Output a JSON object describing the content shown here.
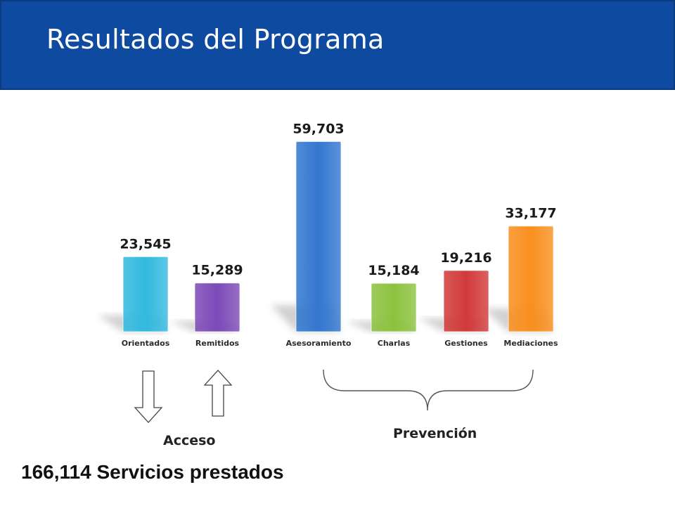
{
  "header": {
    "title": "Resultados del Programa",
    "background_color": "#0e4aa0"
  },
  "chart_data": {
    "type": "bar",
    "categories": [
      "Orientados",
      "Remitidos",
      "Asesoramiento",
      "Charlas",
      "Gestiones",
      "Mediaciones"
    ],
    "values": [
      23545,
      15289,
      59703,
      15184,
      19216,
      33177
    ],
    "value_labels": [
      "23,545",
      "15,289",
      "59,703",
      "15,184",
      "19,216",
      "33,177"
    ],
    "colors": [
      "#33b9df",
      "#7d4ab8",
      "#3377cf",
      "#8cc23f",
      "#d23a3a",
      "#f98f1e"
    ],
    "ylim": [
      0,
      60000
    ],
    "grid": false,
    "legend": "none"
  },
  "annotations": {
    "acceso_label": "Acceso",
    "prevencion_label": "Prevención",
    "summary": "166,114 Servicios prestados"
  },
  "icons": [
    "down-arrow-icon",
    "up-arrow-icon",
    "curly-brace-icon"
  ]
}
